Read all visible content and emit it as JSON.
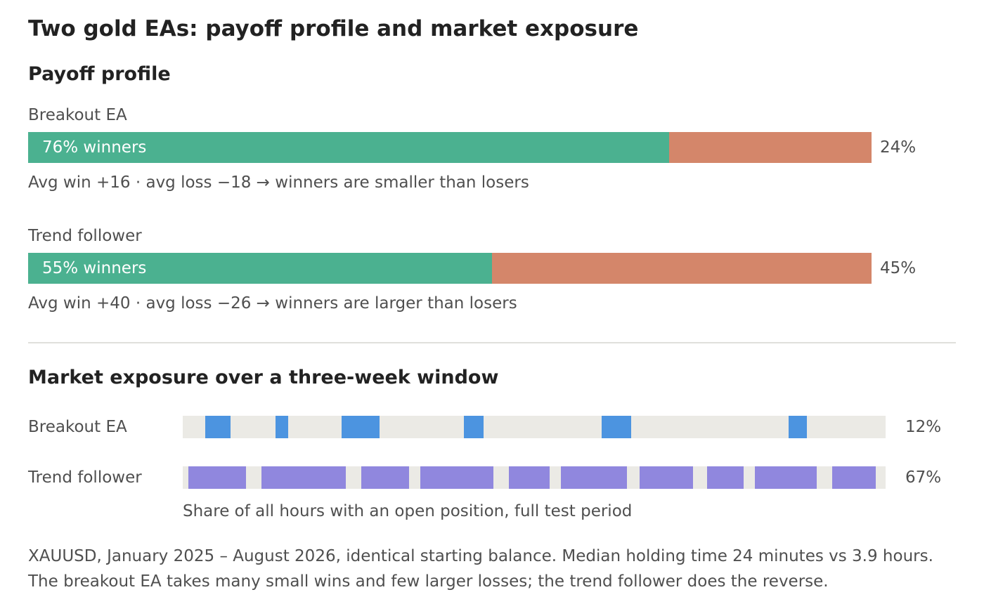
{
  "title": "Two gold EAs: payoff profile and market exposure",
  "payoff": {
    "heading": "Payoff profile",
    "rows": [
      {
        "name": "Breakout EA",
        "win_pct": 76,
        "loss_pct": 24,
        "win_label": "76% winners",
        "loss_label": "24%",
        "note": "Avg win +16 · avg loss −18 → winners are smaller than losers"
      },
      {
        "name": "Trend follower",
        "win_pct": 55,
        "loss_pct": 45,
        "win_label": "55% winners",
        "loss_label": "45%",
        "note": "Avg win +40 · avg loss −26 → winners are larger than losers"
      }
    ]
  },
  "exposure": {
    "heading": "Market exposure over a three-week window",
    "caption": "Share of all hours with an open position, full test period",
    "rows": [
      {
        "name": "Breakout EA",
        "share_label": "12%",
        "share": 12
      },
      {
        "name": "Trend follower",
        "share_label": "67%",
        "share": 67
      }
    ]
  },
  "footnote": {
    "line1": "XAUUSD, January 2025 – August 2026, identical starting balance. Median holding time 24 minutes vs 3.9 hours.",
    "line2": "The breakout EA takes many small wins and few larger losses; the trend follower does the reverse."
  },
  "colors": {
    "win": "#4bb190",
    "loss": "#d4866a",
    "breakout_exposure": "#4c94e0",
    "trend_exposure": "#9087de",
    "track": "#ebeae5"
  },
  "chart_data": [
    {
      "type": "bar",
      "title": "Payoff profile",
      "categories": [
        "Breakout EA",
        "Trend follower"
      ],
      "series": [
        {
          "name": "winners",
          "values": [
            76,
            55
          ]
        },
        {
          "name": "",
          "values": [
            24,
            45
          ]
        }
      ],
      "ylim": [
        0,
        100
      ],
      "stacked": true,
      "orientation": "horizontal"
    },
    {
      "type": "bar",
      "title": "Market exposure over a three-week window",
      "categories": [
        "Breakout EA",
        "Trend follower"
      ],
      "values": [
        12,
        67
      ],
      "note": "Share of all hours with an open position, full test period",
      "ylim": [
        0,
        100
      ],
      "window_fraction": [
        0,
        1
      ],
      "open_position_intervals": [
        [
          [
            0.032,
            0.068
          ],
          [
            0.132,
            0.15
          ],
          [
            0.226,
            0.28
          ],
          [
            0.4,
            0.428
          ],
          [
            0.596,
            0.638
          ],
          [
            0.862,
            0.888
          ]
        ],
        [
          [
            0.008,
            0.09
          ],
          [
            0.112,
            0.232
          ],
          [
            0.254,
            0.322
          ],
          [
            0.338,
            0.442
          ],
          [
            0.464,
            0.522
          ],
          [
            0.538,
            0.632
          ],
          [
            0.65,
            0.726
          ],
          [
            0.746,
            0.798
          ],
          [
            0.814,
            0.902
          ],
          [
            0.924,
            0.986
          ]
        ]
      ]
    }
  ]
}
